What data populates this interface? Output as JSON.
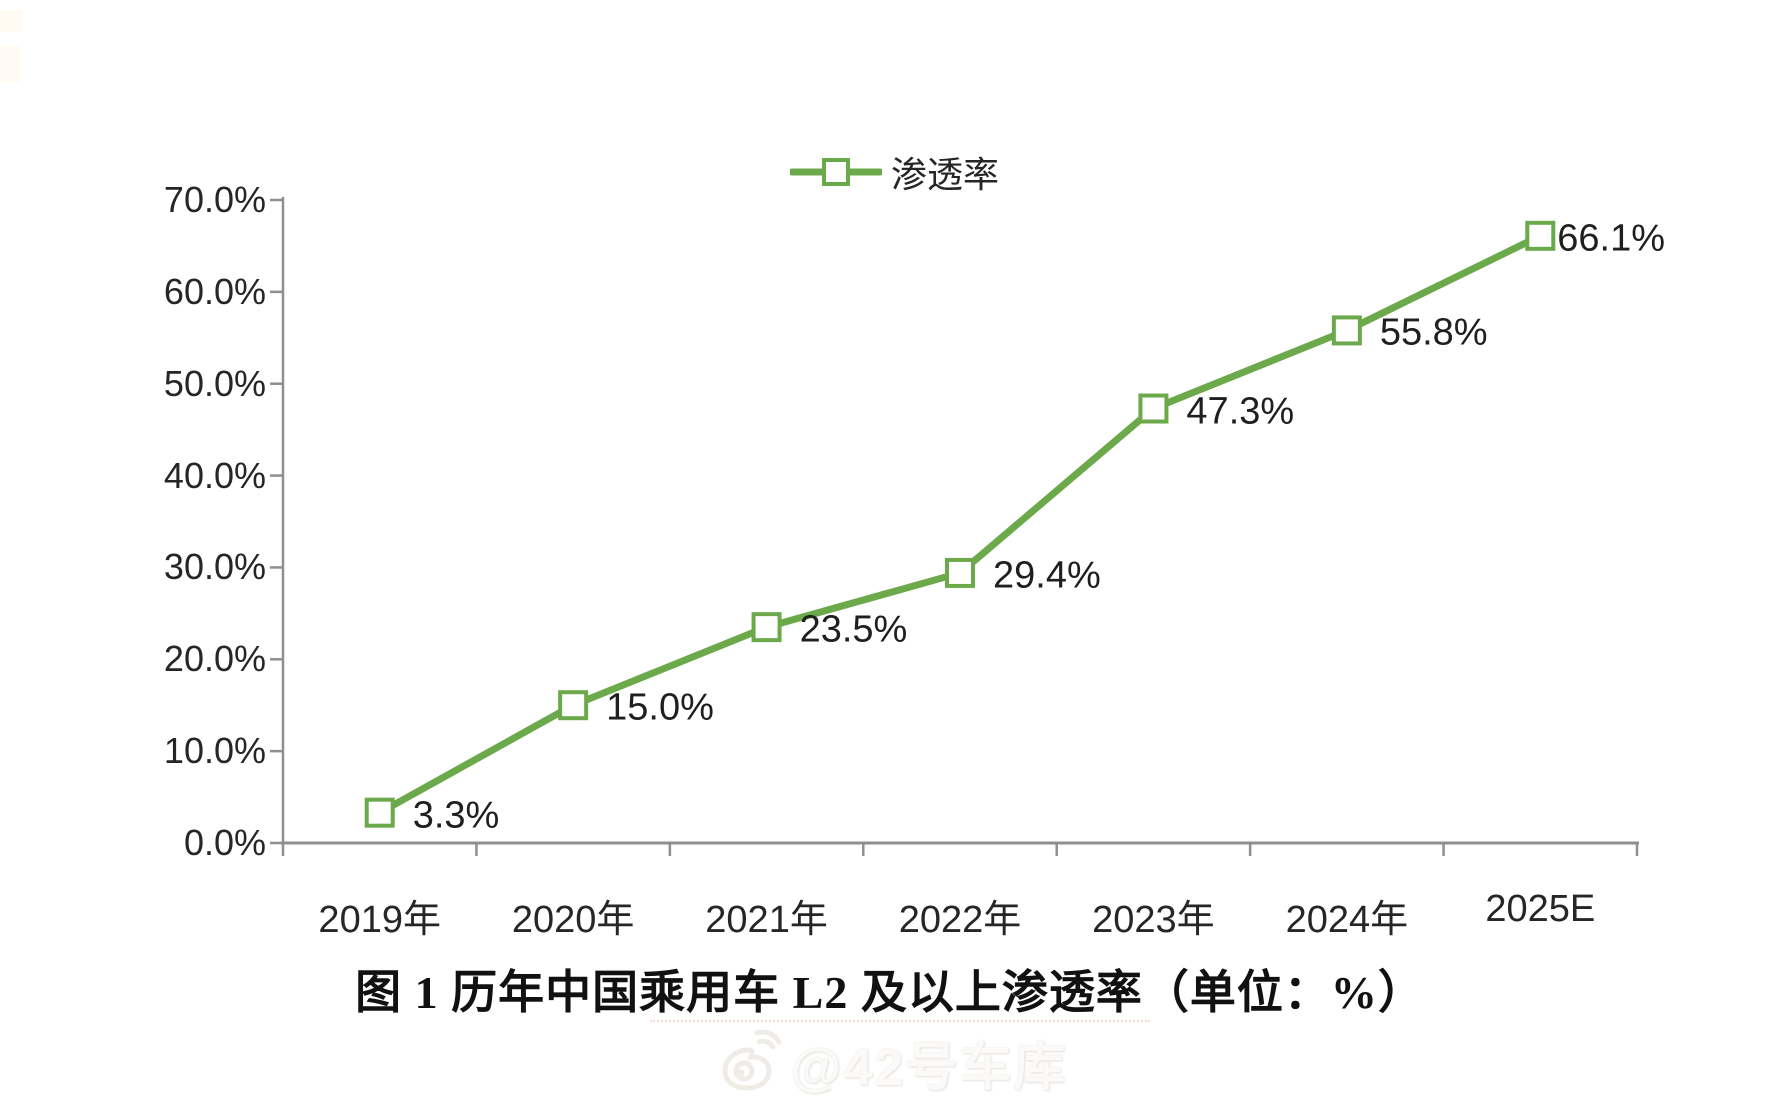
{
  "page": {
    "background": "#ffffff"
  },
  "legend": {
    "label": "渗透率"
  },
  "title": {
    "text": "图 1  历年中国乘用车 L2 及以上渗透率（单位：%）"
  },
  "watermark": {
    "icon": "weibo-icon",
    "text": "@42号车库"
  },
  "chart_data": {
    "type": "line",
    "title": "图 1  历年中国乘用车 L2 及以上渗透率（单位：%）",
    "categories": [
      "2019年",
      "2020年",
      "2021年",
      "2022年",
      "2023年",
      "2024年",
      "2025E"
    ],
    "series": [
      {
        "name": "渗透率",
        "values": [
          3.3,
          15.0,
          23.5,
          29.4,
          47.3,
          55.8,
          66.1
        ]
      }
    ],
    "point_labels": [
      "3.3%",
      "15.0%",
      "23.5%",
      "29.4%",
      "47.3%",
      "55.8%",
      "66.1%"
    ],
    "y_tick_labels": [
      "0.0%",
      "10.0%",
      "20.0%",
      "30.0%",
      "40.0%",
      "50.0%",
      "60.0%",
      "70.0%"
    ],
    "ylim": [
      0,
      70
    ],
    "xlabel": "",
    "ylabel": "",
    "grid": false,
    "legend_position": "top-center",
    "marker": "open-square",
    "colors": {
      "line": "#6ba94a",
      "marker_fill": "#ffffff",
      "axis": "#8f8f8f",
      "text": "#262626"
    }
  }
}
